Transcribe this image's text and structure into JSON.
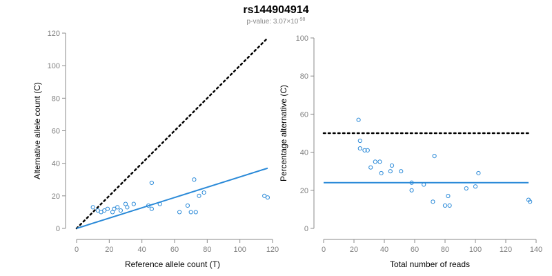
{
  "header": {
    "title": "rs144904914",
    "subtitle_prefix": "p-value: 3.07×10",
    "subtitle_exponent": "-98"
  },
  "colors": {
    "point": "#2b8ad8",
    "fit_line": "#2b8ad8",
    "reference_line": "#000000"
  },
  "chart_data": [
    {
      "type": "scatter",
      "xlabel": "Reference allele count (T)",
      "ylabel": "Alternative allele count (C)",
      "xlim": [
        0,
        120
      ],
      "ylim": [
        0,
        120
      ],
      "x_ticks": [
        "0",
        "20",
        "40",
        "60",
        "80",
        "100",
        "120"
      ],
      "y_ticks": [
        "0",
        "20",
        "40",
        "60",
        "80",
        "100",
        "120"
      ],
      "reference_line": {
        "style": "dotted",
        "from": [
          0,
          0
        ],
        "to": [
          117,
          117
        ]
      },
      "fit_line": {
        "style": "solid",
        "from": [
          0,
          0
        ],
        "to": [
          117,
          37
        ]
      },
      "points": [
        {
          "x": 10,
          "y": 13
        },
        {
          "x": 13,
          "y": 11
        },
        {
          "x": 15,
          "y": 10
        },
        {
          "x": 17,
          "y": 11
        },
        {
          "x": 19,
          "y": 12
        },
        {
          "x": 22,
          "y": 10
        },
        {
          "x": 23,
          "y": 12
        },
        {
          "x": 25,
          "y": 13
        },
        {
          "x": 27,
          "y": 11
        },
        {
          "x": 30,
          "y": 15
        },
        {
          "x": 31,
          "y": 13
        },
        {
          "x": 35,
          "y": 15
        },
        {
          "x": 44,
          "y": 14
        },
        {
          "x": 46,
          "y": 12
        },
        {
          "x": 46,
          "y": 28
        },
        {
          "x": 51,
          "y": 15
        },
        {
          "x": 63,
          "y": 10
        },
        {
          "x": 68,
          "y": 14
        },
        {
          "x": 70,
          "y": 10
        },
        {
          "x": 72,
          "y": 30
        },
        {
          "x": 73,
          "y": 10
        },
        {
          "x": 75,
          "y": 20
        },
        {
          "x": 78,
          "y": 22
        },
        {
          "x": 115,
          "y": 20
        },
        {
          "x": 117,
          "y": 19
        }
      ]
    },
    {
      "type": "scatter",
      "xlabel": "Total number of reads",
      "ylabel": "Percentage alternative (C)",
      "xlim": [
        0,
        140
      ],
      "ylim": [
        0,
        100
      ],
      "x_ticks": [
        "0",
        "20",
        "40",
        "60",
        "80",
        "100",
        "120",
        "140"
      ],
      "y_ticks": [
        "0",
        "20",
        "40",
        "60",
        "80",
        "100"
      ],
      "reference_line": {
        "style": "dotted",
        "y": 50
      },
      "fit_line": {
        "style": "solid",
        "y": 24
      },
      "points": [
        {
          "x": 23,
          "y": 57
        },
        {
          "x": 24,
          "y": 46
        },
        {
          "x": 24,
          "y": 42
        },
        {
          "x": 27,
          "y": 41
        },
        {
          "x": 29,
          "y": 41
        },
        {
          "x": 31,
          "y": 32
        },
        {
          "x": 34,
          "y": 35
        },
        {
          "x": 37,
          "y": 35
        },
        {
          "x": 38,
          "y": 29
        },
        {
          "x": 44,
          "y": 30
        },
        {
          "x": 45,
          "y": 33
        },
        {
          "x": 51,
          "y": 30
        },
        {
          "x": 58,
          "y": 24
        },
        {
          "x": 58,
          "y": 20
        },
        {
          "x": 66,
          "y": 23
        },
        {
          "x": 72,
          "y": 14
        },
        {
          "x": 73,
          "y": 38
        },
        {
          "x": 80,
          "y": 12
        },
        {
          "x": 82,
          "y": 17
        },
        {
          "x": 83,
          "y": 12
        },
        {
          "x": 94,
          "y": 21
        },
        {
          "x": 100,
          "y": 22
        },
        {
          "x": 102,
          "y": 29
        },
        {
          "x": 135,
          "y": 15
        },
        {
          "x": 136,
          "y": 14
        }
      ]
    }
  ]
}
